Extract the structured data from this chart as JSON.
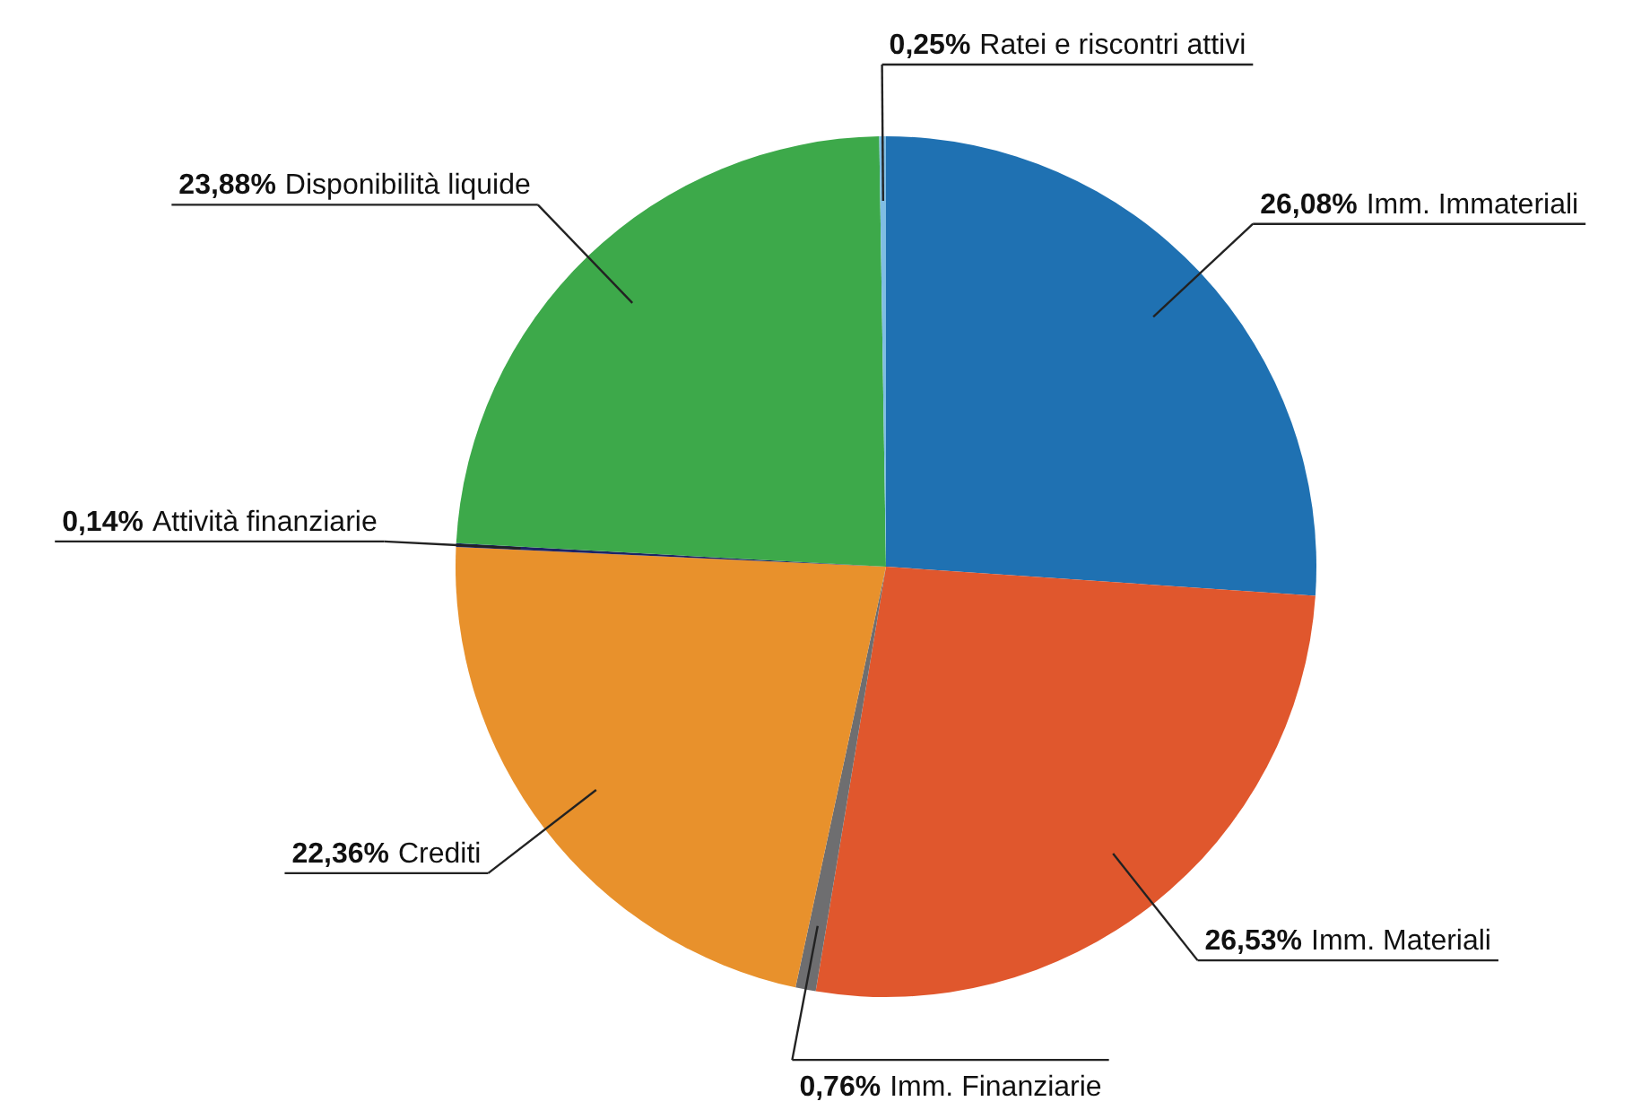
{
  "chart_data": {
    "type": "pie",
    "categories": [
      "Imm. Immateriali",
      "Imm. Materiali",
      "Imm. Finanziarie",
      "Crediti",
      "Attività finanziarie",
      "Disponibilità liquide",
      "Ratei e riscontri attivi"
    ],
    "values": [
      26.08,
      26.53,
      0.76,
      22.36,
      0.14,
      23.88,
      0.25
    ],
    "colors": [
      "#1f71b2",
      "#e0572d",
      "#6e6e70",
      "#e8912c",
      "#1e2466",
      "#3da94a",
      "#7fbde3"
    ],
    "value_labels": [
      "26,08%",
      "26,53%",
      "0,76%",
      "22,36%",
      "0,14%",
      "23,88%",
      "0,25%"
    ]
  }
}
